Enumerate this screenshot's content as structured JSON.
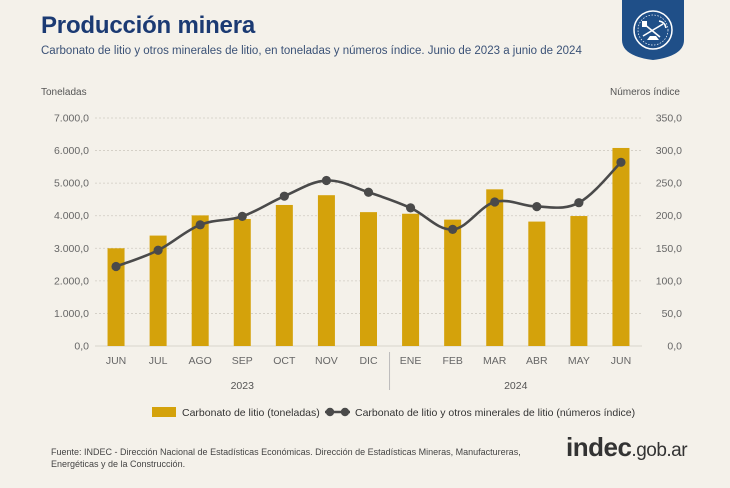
{
  "header": {
    "title": "Producción minera",
    "subtitle": "Carbonato de litio y otros minerales de litio, en toneladas y números índice. Junio de 2023 a junio de 2024"
  },
  "badge": {
    "icon": "mining-seal-icon"
  },
  "chart_data": {
    "type": "bar+line",
    "categories": [
      "JUN",
      "JUL",
      "AGO",
      "SEP",
      "OCT",
      "NOV",
      "DIC",
      "ENE",
      "FEB",
      "MAR",
      "ABR",
      "MAY",
      "JUN"
    ],
    "year_groups": [
      {
        "label": "2023",
        "start": 0,
        "end": 6
      },
      {
        "label": "2024",
        "start": 7,
        "end": 12
      }
    ],
    "series": [
      {
        "name": "Carbonato de litio (toneladas)",
        "type": "bar",
        "axis": "left",
        "color": "#d4a20b",
        "values": [
          3000,
          3390,
          4010,
          3900,
          4330,
          4630,
          4110,
          4060,
          3880,
          4810,
          3820,
          3990,
          6080
        ]
      },
      {
        "name": "Carbonato de litio y otros minerales de litio (números índice)",
        "type": "line",
        "axis": "right",
        "color": "#4a4a4a",
        "values": [
          122,
          147,
          186,
          199,
          230,
          254,
          236,
          212,
          179,
          221,
          214,
          220,
          282
        ]
      }
    ],
    "left_axis": {
      "label": "Toneladas",
      "ylim": [
        0,
        7000
      ],
      "ticks": [
        "0,0",
        "1.000,0",
        "2.000,0",
        "3.000,0",
        "4.000,0",
        "5.000,0",
        "6.000,0",
        "7.000,0"
      ]
    },
    "right_axis": {
      "label": "Números índice",
      "ylim": [
        0,
        350
      ],
      "ticks": [
        "0,0",
        "50,0",
        "100,0",
        "150,0",
        "200,0",
        "250,0",
        "300,0",
        "350,0"
      ]
    },
    "grid": true,
    "legend_position": "bottom"
  },
  "footer": {
    "source": "Fuente: INDEC - Dirección Nacional de Estadísticas Económicas. Dirección de Estadísticas Mineras, Manufactureras, Energéticas y de la Construcción."
  },
  "brand": {
    "bold": "indec",
    "rest": ".gob.ar"
  }
}
